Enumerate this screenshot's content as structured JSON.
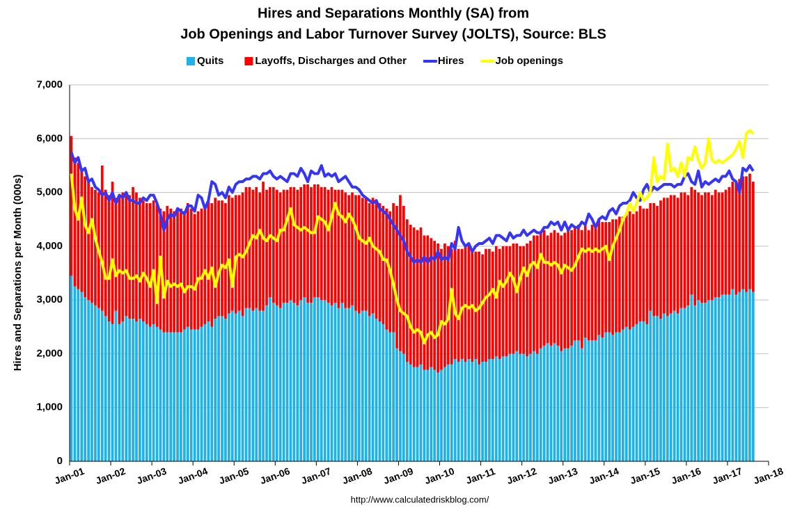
{
  "chart_data": {
    "type": "bar",
    "title": "Hires and Separations Monthly (SA) from",
    "subtitle": "Job Openings and Labor Turnover Survey (JOLTS), Source: BLS",
    "y_label": "Hires and Separations per Month (000s)",
    "source": "http://www.calculatedriskblog.com/",
    "categories": [
      "Jan-01",
      null,
      null,
      null,
      null,
      null,
      null,
      null,
      null,
      null,
      null,
      null,
      "Jan-02",
      null,
      null,
      null,
      null,
      null,
      null,
      null,
      null,
      null,
      null,
      null,
      "Jan-03",
      null,
      null,
      null,
      null,
      null,
      null,
      null,
      null,
      null,
      null,
      null,
      "Jan-04",
      null,
      null,
      null,
      null,
      null,
      null,
      null,
      null,
      null,
      null,
      null,
      "Jan-05",
      null,
      null,
      null,
      null,
      null,
      null,
      null,
      null,
      null,
      null,
      null,
      "Jan-06",
      null,
      null,
      null,
      null,
      null,
      null,
      null,
      null,
      null,
      null,
      null,
      "Jan-07",
      null,
      null,
      null,
      null,
      null,
      null,
      null,
      null,
      null,
      null,
      null,
      "Jan-08",
      null,
      null,
      null,
      null,
      null,
      null,
      null,
      null,
      null,
      null,
      null,
      "Jan-09",
      null,
      null,
      null,
      null,
      null,
      null,
      null,
      null,
      null,
      null,
      null,
      "Jan-10",
      null,
      null,
      null,
      null,
      null,
      null,
      null,
      null,
      null,
      null,
      null,
      "Jan-11",
      null,
      null,
      null,
      null,
      null,
      null,
      null,
      null,
      null,
      null,
      null,
      "Jan-12",
      null,
      null,
      null,
      null,
      null,
      null,
      null,
      null,
      null,
      null,
      null,
      "Jan-13",
      null,
      null,
      null,
      null,
      null,
      null,
      null,
      null,
      null,
      null,
      null,
      "Jan-14",
      null,
      null,
      null,
      null,
      null,
      null,
      null,
      null,
      null,
      null,
      null,
      "Jan-15",
      null,
      null,
      null,
      null,
      null,
      null,
      null,
      null,
      null,
      null,
      null,
      "Jan-16",
      null,
      null,
      null,
      null,
      null,
      null,
      null,
      null,
      null,
      null,
      null,
      "Jan-17",
      null,
      null,
      null,
      null,
      null,
      null,
      null,
      null,
      null,
      null,
      null,
      "Jan-18"
    ],
    "series": [
      {
        "name": "Quits",
        "type": "bar",
        "color": "#1eb2e8",
        "values": [
          3450,
          3250,
          3200,
          3150,
          3050,
          3000,
          2950,
          2900,
          2850,
          2800,
          2700,
          2600,
          2550,
          2800,
          2550,
          2600,
          2700,
          2650,
          2650,
          2600,
          2650,
          2600,
          2550,
          2500,
          2550,
          2500,
          2450,
          2400,
          2400,
          2400,
          2400,
          2400,
          2400,
          2450,
          2500,
          2450,
          2450,
          2450,
          2500,
          2550,
          2600,
          2500,
          2650,
          2700,
          2700,
          2650,
          2750,
          2800,
          2750,
          2800,
          2700,
          2850,
          2850,
          2800,
          2850,
          2800,
          2800,
          2900,
          3050,
          2950,
          2900,
          2850,
          2950,
          2950,
          3000,
          2950,
          2900,
          3000,
          3050,
          2950,
          2950,
          3050,
          3050,
          3000,
          3000,
          2950,
          2900,
          2950,
          2850,
          2950,
          2850,
          2850,
          2900,
          2800,
          2750,
          2800,
          2800,
          2700,
          2750,
          2650,
          2600,
          2550,
          2450,
          2400,
          2400,
          2100,
          2050,
          2000,
          1850,
          1800,
          1750,
          1750,
          1800,
          1700,
          1700,
          1750,
          1700,
          1650,
          1700,
          1750,
          1800,
          1800,
          1900,
          1850,
          1900,
          1850,
          1900,
          1850,
          1900,
          1800,
          1850,
          1850,
          1900,
          1900,
          1950,
          1900,
          1950,
          1950,
          2000,
          2000,
          2050,
          2000,
          2000,
          1950,
          2000,
          2050,
          2000,
          2100,
          2150,
          2200,
          2150,
          2200,
          2150,
          2050,
          2100,
          2100,
          2150,
          2250,
          2250,
          2100,
          2300,
          2250,
          2250,
          2250,
          2350,
          2300,
          2400,
          2400,
          2350,
          2400,
          2400,
          2450,
          2500,
          2450,
          2500,
          2550,
          2600,
          2600,
          2550,
          2800,
          2700,
          2700,
          2650,
          2750,
          2700,
          2750,
          2800,
          2750,
          2850,
          2850,
          2900,
          3100,
          2900,
          3000,
          2950,
          2950,
          3000,
          3000,
          3050,
          3050,
          3100,
          3100,
          3100,
          3200,
          3100,
          3150,
          3200,
          3150,
          3200,
          3150,
          null,
          null,
          null,
          null,
          null
        ]
      },
      {
        "name": "Layoffs, Discharges and Other",
        "type": "bar",
        "color": "#ff0000",
        "values": [
          2600,
          2400,
          2350,
          2300,
          2250,
          2200,
          2150,
          2150,
          2150,
          2700,
          2350,
          2350,
          2650,
          2100,
          2400,
          2400,
          2250,
          2300,
          2450,
          2400,
          2250,
          2250,
          2250,
          2300,
          2300,
          2300,
          2250,
          2250,
          2350,
          2300,
          2250,
          2300,
          2300,
          2200,
          2300,
          2250,
          2150,
          2200,
          2200,
          2200,
          2250,
          2300,
          2250,
          2150,
          2150,
          2150,
          2200,
          2100,
          2200,
          2150,
          2300,
          2250,
          2250,
          2250,
          2250,
          2200,
          2400,
          2150,
          2050,
          2150,
          2150,
          2150,
          2100,
          2100,
          2100,
          2150,
          2150,
          2100,
          2100,
          2200,
          2150,
          2100,
          2100,
          2100,
          2100,
          2100,
          2200,
          2100,
          2200,
          2100,
          2150,
          2100,
          2100,
          2150,
          2200,
          2100,
          2100,
          2100,
          2150,
          2200,
          2200,
          2200,
          2250,
          2250,
          2400,
          2650,
          2900,
          2750,
          2650,
          2600,
          2600,
          2550,
          2550,
          2500,
          2500,
          2400,
          2400,
          2400,
          2250,
          2300,
          2200,
          2150,
          2200,
          2100,
          2050,
          2150,
          2150,
          2100,
          2000,
          2100,
          2000,
          2100,
          2050,
          2000,
          2050,
          2050,
          2050,
          2050,
          2000,
          2050,
          2000,
          2000,
          2000,
          2100,
          2100,
          2150,
          2200,
          2150,
          2150,
          2000,
          2100,
          2100,
          2100,
          2150,
          2150,
          2200,
          2150,
          2100,
          2150,
          2200,
          2100,
          2050,
          2150,
          2150,
          2150,
          2150,
          2050,
          2050,
          2150,
          2100,
          2150,
          2100,
          2100,
          2200,
          2100,
          2100,
          2150,
          2100,
          2150,
          2000,
          2100,
          2050,
          2200,
          2150,
          2200,
          2200,
          2150,
          2150,
          2150,
          2150,
          2050,
          2000,
          2150,
          2000,
          2000,
          2050,
          2000,
          1950,
          2000,
          1950,
          1900,
          1950,
          2000,
          2000,
          2100,
          2100,
          2100,
          2150,
          2150,
          2050,
          null,
          null,
          null,
          null,
          null
        ]
      },
      {
        "name": "Hires",
        "type": "line",
        "color": "#3535f5",
        "values": [
          5750,
          5550,
          5650,
          5400,
          5450,
          5200,
          5250,
          5100,
          5050,
          4950,
          5000,
          4850,
          5000,
          4800,
          4950,
          4900,
          5000,
          4850,
          4850,
          4800,
          4800,
          4900,
          4850,
          4950,
          4950,
          4800,
          4600,
          4300,
          4500,
          4600,
          4550,
          4700,
          4650,
          4600,
          4750,
          4750,
          4650,
          4950,
          4900,
          4700,
          4850,
          5200,
          5150,
          4950,
          5000,
          4900,
          5100,
          5000,
          5150,
          5200,
          5200,
          5250,
          5250,
          5300,
          5300,
          5250,
          5350,
          5350,
          5400,
          5300,
          5250,
          5300,
          5250,
          5200,
          5350,
          5350,
          5300,
          5450,
          5350,
          5200,
          5400,
          5350,
          5350,
          5500,
          5300,
          5350,
          5300,
          5350,
          5200,
          5250,
          5300,
          5200,
          5100,
          5100,
          5050,
          4950,
          4900,
          4850,
          4800,
          4850,
          4700,
          4650,
          4600,
          4500,
          4400,
          4300,
          4200,
          4100,
          3900,
          3800,
          3700,
          3750,
          3700,
          3800,
          3700,
          3800,
          3750,
          3900,
          3750,
          3800,
          3750,
          4050,
          3950,
          4350,
          4100,
          4000,
          4050,
          3900,
          4000,
          4050,
          4050,
          4100,
          4150,
          4050,
          4200,
          4200,
          4150,
          4100,
          4250,
          4150,
          4200,
          4200,
          4300,
          4200,
          4250,
          4300,
          4250,
          4250,
          4350,
          4350,
          4450,
          4400,
          4450,
          4300,
          4450,
          4300,
          4400,
          4350,
          4350,
          4450,
          4400,
          4600,
          4500,
          4350,
          4500,
          4550,
          4500,
          4650,
          4700,
          4600,
          4750,
          4800,
          4800,
          4850,
          5000,
          4900,
          4850,
          5050,
          5150,
          5000,
          5100,
          5050,
          5100,
          5150,
          5150,
          5150,
          5100,
          5150,
          5150,
          5300,
          5350,
          5200,
          5150,
          5400,
          5100,
          5200,
          5150,
          5200,
          5250,
          5200,
          5300,
          5300,
          5400,
          5250,
          5200,
          5000,
          5450,
          5400,
          5500,
          5400,
          null,
          null,
          null,
          null,
          null
        ]
      },
      {
        "name": "Job openings",
        "type": "line",
        "color": "#ffff00",
        "values": [
          5350,
          4700,
          4500,
          4900,
          4400,
          4250,
          4500,
          4150,
          3900,
          3700,
          3400,
          3400,
          3750,
          3450,
          3550,
          3500,
          3550,
          3400,
          3400,
          3450,
          3350,
          3500,
          3400,
          3250,
          3550,
          2950,
          3800,
          3050,
          3350,
          3250,
          3300,
          3250,
          3300,
          3150,
          3250,
          3250,
          3200,
          3400,
          3400,
          3550,
          3400,
          3600,
          3250,
          3500,
          3650,
          3600,
          3750,
          3250,
          3800,
          3850,
          3800,
          3900,
          4050,
          4200,
          4150,
          4300,
          4150,
          4100,
          4200,
          4150,
          4100,
          4300,
          4300,
          4500,
          4700,
          4400,
          4350,
          4300,
          4350,
          4300,
          4250,
          4250,
          4550,
          4500,
          4450,
          4300,
          4550,
          4800,
          4600,
          4550,
          4450,
          4600,
          4500,
          4350,
          4150,
          4100,
          4050,
          4150,
          4000,
          3950,
          3900,
          3750,
          3750,
          3550,
          3300,
          3000,
          2800,
          2750,
          2700,
          2500,
          2400,
          2450,
          2400,
          2200,
          2350,
          2400,
          2300,
          2350,
          2600,
          2550,
          2650,
          3200,
          2750,
          2650,
          2850,
          2900,
          2850,
          2900,
          2800,
          2850,
          2950,
          3050,
          3100,
          3200,
          3050,
          3350,
          3250,
          3350,
          3500,
          3400,
          3150,
          3400,
          3600,
          3450,
          3650,
          3700,
          3600,
          3850,
          3700,
          3700,
          3650,
          3700,
          3650,
          3500,
          3650,
          3600,
          3550,
          3650,
          3800,
          3950,
          3900,
          3950,
          3900,
          3950,
          3900,
          3950,
          4000,
          3750,
          4000,
          4150,
          4300,
          4500,
          4600,
          4800,
          4650,
          4800,
          5000,
          4850,
          4900,
          5000,
          5650,
          5200,
          5300,
          5250,
          5900,
          5400,
          5450,
          5300,
          5550,
          5300,
          5650,
          5600,
          5850,
          5600,
          5450,
          5550,
          6000,
          5600,
          5550,
          5600,
          5550,
          5600,
          5650,
          5700,
          5800,
          5950,
          5650,
          6100,
          6150,
          6100,
          null,
          null,
          null,
          null,
          null
        ]
      }
    ],
    "ylim": [
      0,
      7000
    ],
    "yticks": [
      0,
      {
        "value": 1000,
        "label": "1,000"
      },
      {
        "value": 2000,
        "label": "2,000"
      },
      {
        "value": 3000,
        "label": "3,000"
      },
      {
        "value": 4000,
        "label": "4,000"
      },
      {
        "value": 5000,
        "label": "5,000"
      },
      {
        "value": 6000,
        "label": "6,000"
      },
      {
        "value": 7000,
        "label": "7,000"
      }
    ],
    "grid": true,
    "legend": "top"
  }
}
